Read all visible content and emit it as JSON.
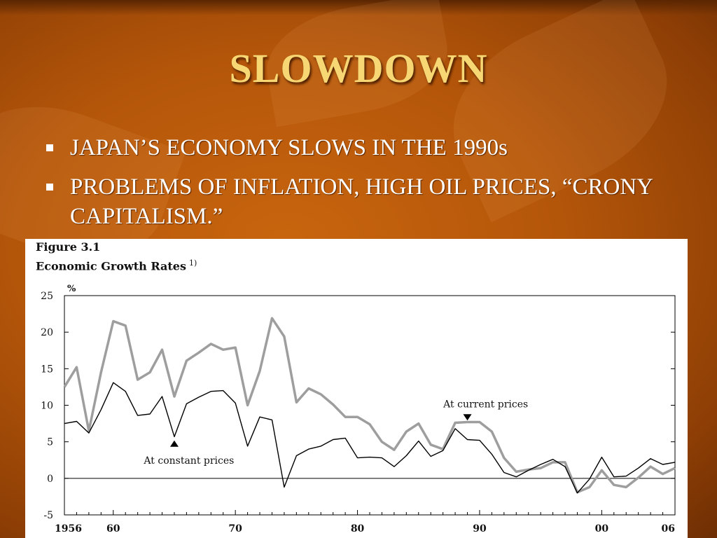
{
  "slide": {
    "title": "SLOWDOWN",
    "bullets": [
      "JAPAN’S ECONOMY SLOWS IN THE 1990s",
      "PROBLEMS OF INFLATION, HIGH OIL PRICES, “CRONY CAPITALISM.”"
    ]
  },
  "figure": {
    "label": "Figure 3.1",
    "title": "Economic Growth Rates",
    "footnote_mark": "1)"
  },
  "chart_data": {
    "type": "line",
    "ylabel": "%",
    "ylim": [
      -5,
      25
    ],
    "yticks": [
      -5,
      0,
      5,
      10,
      15,
      20,
      25
    ],
    "xlim": [
      1956,
      2006
    ],
    "xticks": [
      {
        "year": 1956,
        "label": "1956"
      },
      {
        "year": 1960,
        "label": "60"
      },
      {
        "year": 1970,
        "label": "70"
      },
      {
        "year": 1980,
        "label": "80"
      },
      {
        "year": 1990,
        "label": "90"
      },
      {
        "year": 2000,
        "label": "00"
      },
      {
        "year": 2006,
        "label": "06"
      }
    ],
    "grid": false,
    "x": [
      1956,
      1957,
      1958,
      1959,
      1960,
      1961,
      1962,
      1963,
      1964,
      1965,
      1966,
      1967,
      1968,
      1969,
      1970,
      1971,
      1972,
      1973,
      1974,
      1975,
      1976,
      1977,
      1978,
      1979,
      1980,
      1981,
      1982,
      1983,
      1984,
      1985,
      1986,
      1987,
      1988,
      1989,
      1990,
      1991,
      1992,
      1993,
      1994,
      1995,
      1996,
      1997,
      1998,
      1999,
      2000,
      2001,
      2002,
      2003,
      2004,
      2005,
      2006
    ],
    "series": [
      {
        "name": "At current prices",
        "color": "#9e9e9e",
        "values": [
          12.5,
          15.2,
          6.5,
          14.5,
          21.5,
          20.9,
          13.5,
          14.5,
          17.6,
          11.2,
          16.1,
          17.2,
          18.4,
          17.6,
          17.9,
          10.0,
          14.7,
          21.9,
          19.4,
          10.4,
          12.3,
          11.5,
          10.1,
          8.4,
          8.4,
          7.4,
          5.0,
          3.9,
          6.4,
          7.5,
          4.6,
          4.0,
          7.6,
          7.7,
          7.7,
          6.4,
          2.8,
          0.9,
          1.2,
          1.4,
          2.2,
          2.2,
          -1.9,
          -1.2,
          1.1,
          -0.9,
          -1.2,
          0.1,
          1.6,
          0.6,
          1.4
        ]
      },
      {
        "name": "At constant prices",
        "color": "#000000",
        "values": [
          7.5,
          7.8,
          6.2,
          9.4,
          13.1,
          11.9,
          8.6,
          8.8,
          11.2,
          5.7,
          10.2,
          11.1,
          11.9,
          12.0,
          10.3,
          4.4,
          8.4,
          8.0,
          -1.2,
          3.1,
          4.0,
          4.4,
          5.3,
          5.5,
          2.8,
          2.9,
          2.8,
          1.6,
          3.1,
          5.1,
          3.0,
          3.8,
          6.8,
          5.3,
          5.2,
          3.3,
          0.8,
          0.2,
          1.1,
          1.9,
          2.6,
          1.6,
          -2.0,
          -0.1,
          2.9,
          0.2,
          0.3,
          1.4,
          2.7,
          1.9,
          2.2
        ]
      }
    ],
    "annotations": [
      {
        "text": "At current prices",
        "arrow": "down",
        "arrow_x": 1989,
        "arrow_y": 8.3,
        "text_x": 1990.5,
        "text_y": 10.2
      },
      {
        "text": "At constant prices",
        "arrow": "up",
        "arrow_x": 1965,
        "arrow_y": 4.8,
        "text_x": 1966.2,
        "text_y": 2.5
      }
    ]
  }
}
